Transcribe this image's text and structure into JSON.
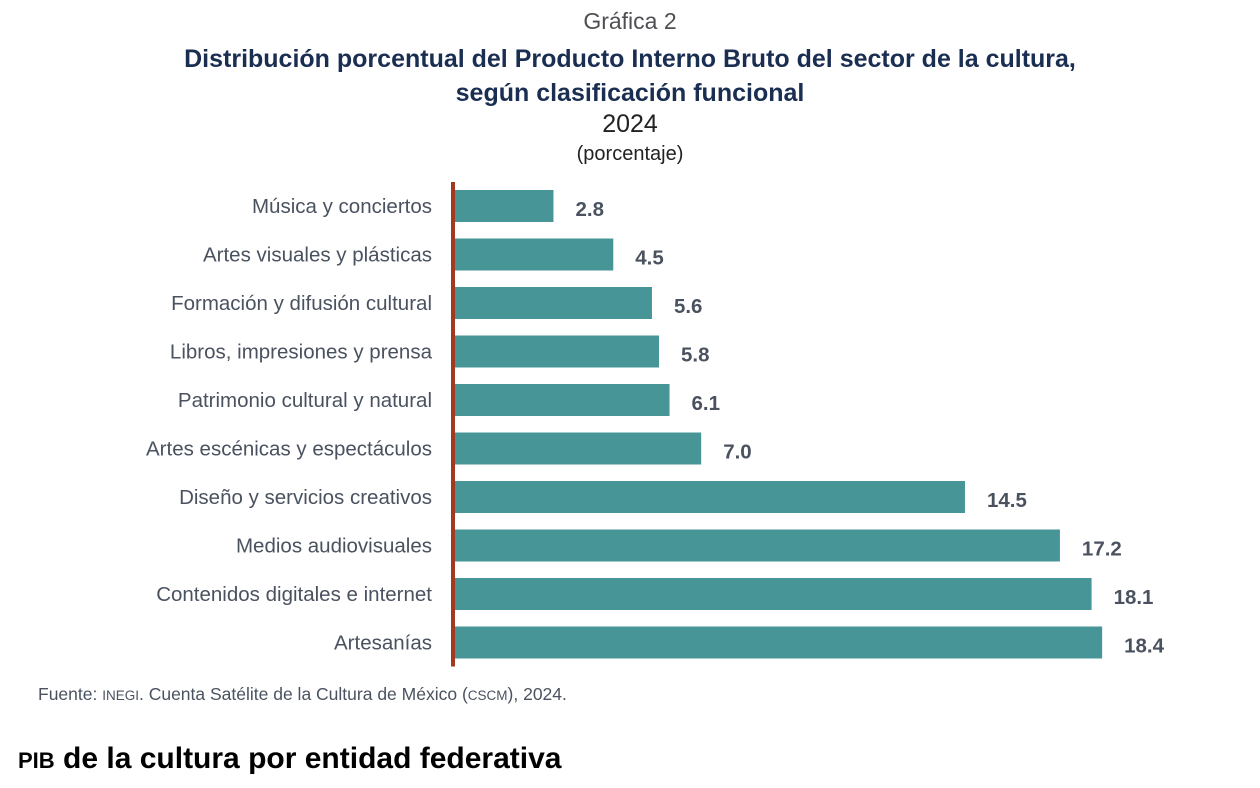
{
  "chart_data": {
    "type": "bar",
    "orientation": "horizontal",
    "supertitle": "Gráfica 2",
    "title": "Distribución porcentual del Producto Interno Bruto del sector de la cultura, según clasificación funcional",
    "title_lines": [
      "Distribución porcentual del Producto Interno Bruto del sector de la cultura,",
      "según clasificación funcional"
    ],
    "subtitle": "2024",
    "unit_label": "(porcentaje)",
    "xlabel": "",
    "ylabel": "",
    "categories": [
      "Música y conciertos",
      "Artes visuales y plásticas",
      "Formación y difusión cultural",
      "Libros, impresiones y prensa",
      "Patrimonio cultural y natural",
      "Artes escénicas y espectáculos",
      "Diseño y servicios creativos",
      "Medios audiovisuales",
      "Contenidos digitales e internet",
      "Artesanías"
    ],
    "values": [
      2.8,
      4.5,
      5.6,
      5.8,
      6.1,
      7.0,
      14.5,
      17.2,
      18.1,
      18.4
    ],
    "value_labels": [
      "2.8",
      "4.5",
      "5.6",
      "5.8",
      "6.1",
      "7.0",
      "14.5",
      "17.2",
      "18.1",
      "18.4"
    ],
    "xlim": [
      0,
      20
    ],
    "grid": false,
    "legend": "none",
    "bar_color": "#479597",
    "axis_color": "#a33a1f"
  },
  "source": {
    "prefix": "Fuente: ",
    "org": "INEGI",
    "text_mid": ". Cuenta Satélite de la Cultura de México (",
    "abbr": "CSCM",
    "text_end": "), 2024."
  },
  "section_heading": {
    "abbr": "PIB",
    "text": " de la cultura por entidad federativa"
  }
}
